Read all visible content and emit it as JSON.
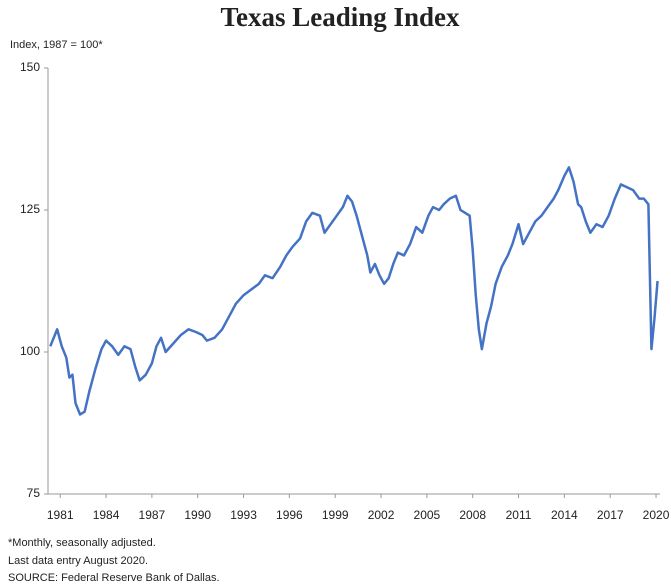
{
  "chart_data": {
    "type": "line",
    "title": "Texas Leading Index",
    "ylabel": "Index, 1987 = 100*",
    "notes": [
      "*Monthly, seasonally adjusted.",
      "Last data entry August 2020.",
      "SOURCE: Federal Reserve Bank of Dallas."
    ],
    "color": "#4472c4",
    "xlim": [
      1980.2,
      2020.26
    ],
    "xticks": [
      1981,
      1984,
      1987,
      1990,
      1993,
      1996,
      1999,
      2002,
      2005,
      2008,
      2011,
      2014,
      2017,
      2020
    ],
    "ylim": [
      75,
      150
    ],
    "yticks": [
      75,
      100,
      125,
      150
    ],
    "x": [
      1980.35,
      1980.8,
      1981.1,
      1981.4,
      1981.6,
      1981.8,
      1982.0,
      1982.3,
      1982.6,
      1982.9,
      1983.3,
      1983.7,
      1984.0,
      1984.4,
      1984.8,
      1985.2,
      1985.6,
      1985.9,
      1986.2,
      1986.6,
      1987.0,
      1987.3,
      1987.6,
      1987.9,
      1988.4,
      1988.9,
      1989.4,
      1989.9,
      1990.3,
      1990.6,
      1991.1,
      1991.6,
      1992.0,
      1992.5,
      1993.0,
      1993.5,
      1994.0,
      1994.4,
      1994.9,
      1995.4,
      1995.8,
      1996.2,
      1996.7,
      1997.1,
      1997.5,
      1998.0,
      1998.3,
      1998.7,
      1999.1,
      1999.5,
      1999.8,
      2000.1,
      2000.4,
      2000.8,
      2001.1,
      2001.3,
      2001.6,
      2001.9,
      2002.2,
      2002.5,
      2002.8,
      2003.1,
      2003.5,
      2003.9,
      2004.3,
      2004.7,
      2005.1,
      2005.4,
      2005.8,
      2006.1,
      2006.5,
      2006.9,
      2007.2,
      2007.5,
      2007.8,
      2008.0,
      2008.2,
      2008.4,
      2008.6,
      2008.9,
      2009.2,
      2009.5,
      2009.9,
      2010.3,
      2010.6,
      2011.0,
      2011.3,
      2011.7,
      2012.1,
      2012.5,
      2012.9,
      2013.3,
      2013.6,
      2014.0,
      2014.3,
      2014.6,
      2014.9,
      2015.1,
      2015.4,
      2015.7,
      2016.1,
      2016.5,
      2016.9,
      2017.3,
      2017.7,
      2018.1,
      2018.5,
      2018.9,
      2019.2,
      2019.5,
      2019.7,
      2019.9,
      2020.1
    ],
    "values": [
      101,
      104,
      101,
      99,
      95.5,
      96,
      91,
      89,
      89.5,
      93,
      97,
      100.5,
      102,
      101,
      99.5,
      101,
      100.5,
      97.5,
      95,
      96,
      98,
      101,
      102.5,
      100,
      101.5,
      103,
      104,
      103.5,
      103,
      102,
      102.5,
      104,
      106,
      108.5,
      110,
      111,
      112,
      113.5,
      113,
      115,
      117,
      118.5,
      120,
      123,
      124.5,
      124,
      121,
      122.5,
      124,
      125.5,
      127.5,
      126.5,
      124,
      120,
      117,
      114,
      115.5,
      113.5,
      112,
      113,
      115.5,
      117.5,
      117,
      119,
      122,
      121,
      124,
      125.5,
      125,
      126,
      127,
      127.5,
      125,
      124.5,
      124,
      118,
      110,
      104,
      100.5,
      105,
      108,
      112,
      115,
      117,
      119,
      122.5,
      119,
      121,
      123,
      124,
      125.5,
      127,
      128.5,
      131,
      132.5,
      130,
      126,
      125.5,
      123,
      121,
      122.5,
      122,
      124,
      127,
      129.5,
      129,
      128.5,
      127,
      127,
      126,
      100.5,
      106,
      112.5
    ]
  }
}
